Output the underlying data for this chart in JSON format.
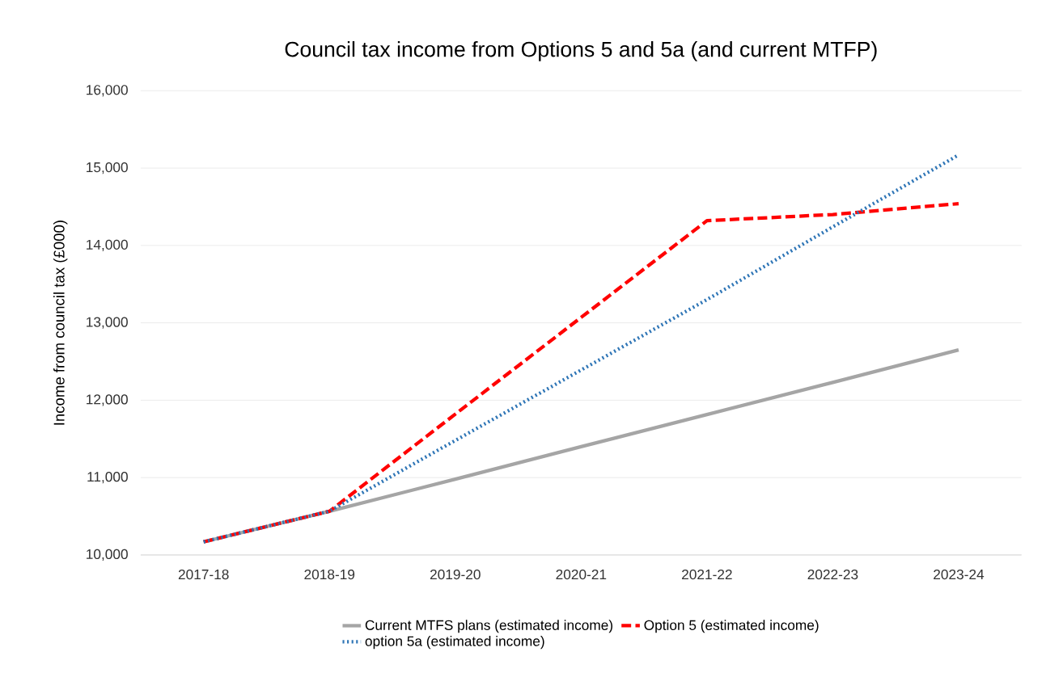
{
  "chart_data": {
    "type": "line",
    "title": "Council tax income from Options 5 and 5a (and current MTFP)",
    "ylabel": "Income from  council tax  (£000)",
    "categories": [
      "2017-18",
      "2018-19",
      "2019-20",
      "2020-21",
      "2021-22",
      "2022-23",
      "2023-24"
    ],
    "series": [
      {
        "name": "Current MTFS plans (estimated income)",
        "color": "#a5a5a5",
        "line_style": "solid",
        "values": [
          10170,
          10565,
          10980,
          11400,
          11815,
          12230,
          12650
        ]
      },
      {
        "name": "Option 5 (estimated income)",
        "color": "#ff0000",
        "line_style": "dashed",
        "values": [
          10170,
          10565,
          11820,
          13070,
          14320,
          14400,
          14540
        ]
      },
      {
        "name": "option 5a (estimated income)",
        "color": "#2e75b6",
        "line_style": "dotted",
        "values": [
          10170,
          10565,
          11480,
          12390,
          13300,
          14240,
          15170
        ]
      }
    ],
    "ylim": [
      10000,
      16000
    ],
    "yticks": [
      {
        "value": 10000,
        "label": "10,000"
      },
      {
        "value": 11000,
        "label": "11,000"
      },
      {
        "value": 12000,
        "label": "12,000"
      },
      {
        "value": 13000,
        "label": "13,000"
      },
      {
        "value": 14000,
        "label": "14,000"
      },
      {
        "value": 15000,
        "label": "15,000"
      },
      {
        "value": 16000,
        "label": "16,000"
      }
    ],
    "grid": "y",
    "legend": "bottom",
    "marker": "none"
  }
}
